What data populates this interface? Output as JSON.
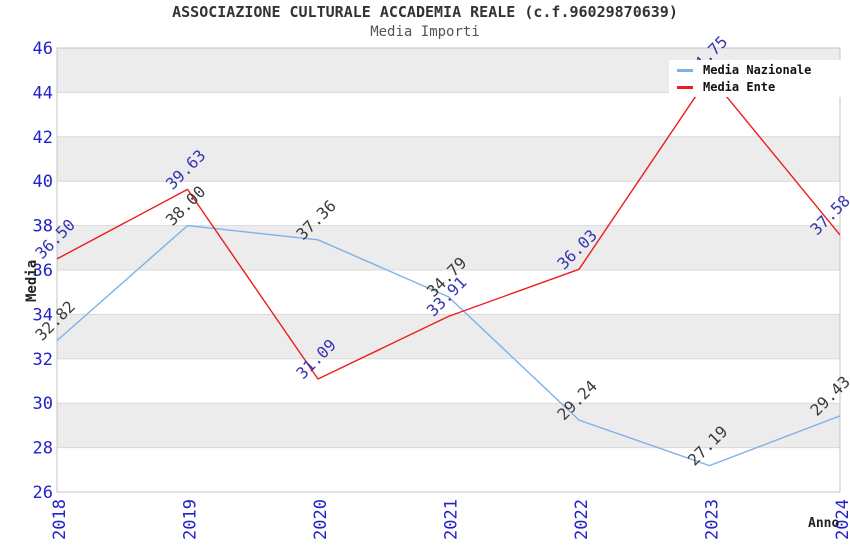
{
  "chart_data": {
    "type": "line",
    "title": "ASSOCIAZIONE CULTURALE ACCADEMIA REALE (c.f.96029870639)",
    "subtitle": "Media Importi",
    "xlabel": "Anno",
    "ylabel": "Media",
    "x": [
      "2018",
      "2019",
      "2020",
      "2021",
      "2022",
      "2023",
      "2024"
    ],
    "series": [
      {
        "name": "Media Nazionale",
        "color": "#7db2e8",
        "label_color": "#3c3c3c",
        "values": [
          32.82,
          38.0,
          37.36,
          34.79,
          29.24,
          27.19,
          29.43
        ],
        "labels": [
          "32.82",
          "38.00",
          "37.36",
          "34.79",
          "29.24",
          "27.19",
          "29.43"
        ]
      },
      {
        "name": "Media Ente",
        "color": "#ee1c1c",
        "label_color": "#3535b0",
        "values": [
          36.5,
          39.63,
          31.09,
          33.91,
          36.03,
          44.75,
          37.58
        ],
        "labels": [
          "36.50",
          "39.63",
          "31.09",
          "33.91",
          "36.03",
          "44.75",
          "37.58"
        ]
      }
    ],
    "ylim": [
      26,
      46
    ],
    "ytick_step": 2,
    "yticks": [
      "26",
      "28",
      "30",
      "32",
      "34",
      "36",
      "38",
      "40",
      "42",
      "44",
      "46"
    ],
    "grid": "horizontal gridlines with alternating shaded bands",
    "legend_position": "top-right",
    "colors": {
      "tick_label": "#2222cc",
      "band_shade": "#ececec",
      "gridline": "#d9d9d9",
      "plot_border": "#c4c4c4",
      "title_text": "#333333"
    }
  }
}
